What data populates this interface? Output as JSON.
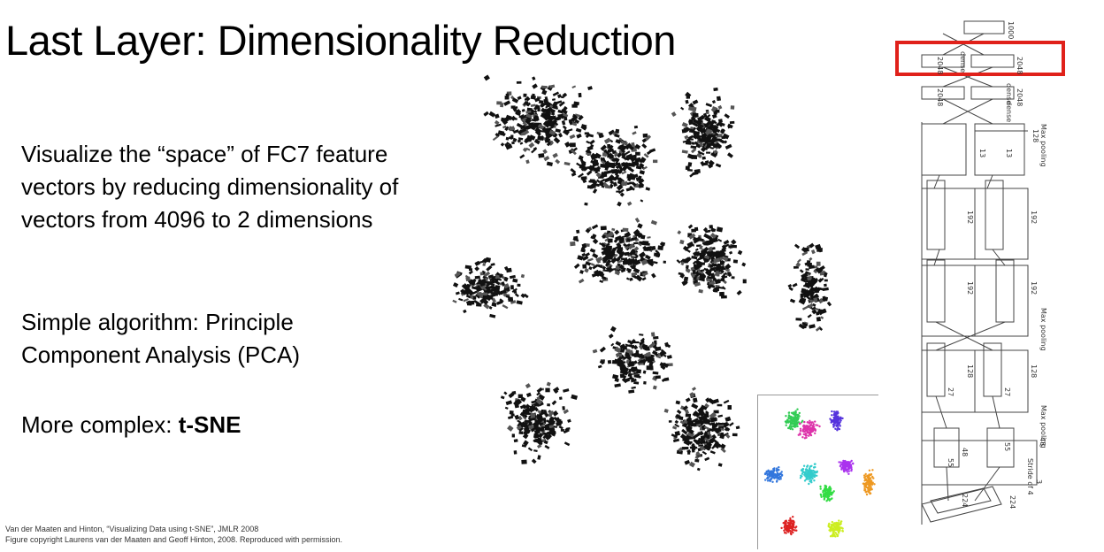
{
  "title": "Last Layer: Dimensionality Reduction",
  "paragraphs": {
    "p1": "Visualize the “space” of FC7 feature vectors by reducing dimensionality of vectors from 4096 to 2 dimensions",
    "p2": "Simple algorithm: Principle Component Analysis (PCA)",
    "p3_prefix": "More complex: ",
    "p3_bold": "t-SNE"
  },
  "credits": {
    "line1": "Van der Maaten and Hinton, “Visualizing Data using t-SNE”, JMLR 2008",
    "line2": "Figure copyright Laurens van der Maaten and Geoff Hinton, 2008. Reproduced with permission."
  },
  "architecture": {
    "highlight_color": "#e0211a",
    "labels": {
      "dense_top": "dense",
      "n1000": "1000",
      "n2048": "2048",
      "dense": "dense",
      "max_pooling": "Max pooling",
      "n128": "128",
      "n192": "192",
      "n13": "13",
      "n27": "27",
      "n48": "48",
      "n55": "55",
      "n224": "224",
      "stride": "Stride of 4",
      "n3": "3"
    }
  },
  "inset_colors": [
    "#33cc55",
    "#dd33aa",
    "#5533dd",
    "#3377dd",
    "#33cccc",
    "#33dd44",
    "#aa33ee",
    "#ee9922",
    "#dd2222",
    "#ccee22"
  ]
}
